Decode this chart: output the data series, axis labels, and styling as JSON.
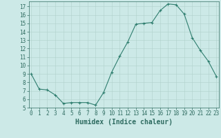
{
  "x": [
    0,
    1,
    2,
    3,
    4,
    5,
    6,
    7,
    8,
    9,
    10,
    11,
    12,
    13,
    14,
    15,
    16,
    17,
    18,
    19,
    20,
    21,
    22,
    23
  ],
  "y": [
    9.0,
    7.2,
    7.1,
    6.5,
    5.5,
    5.6,
    5.6,
    5.6,
    5.3,
    6.8,
    9.2,
    11.1,
    12.8,
    14.9,
    15.0,
    15.1,
    16.5,
    17.3,
    17.2,
    16.1,
    13.3,
    11.8,
    10.5,
    8.7
  ],
  "line_color": "#2e7d6e",
  "marker_color": "#2e7d6e",
  "bg_color": "#cce9e7",
  "grid_color": "#b0d0cc",
  "xlabel": "Humidex (Indice chaleur)",
  "ylim": [
    5,
    17.6
  ],
  "yticks": [
    5,
    6,
    7,
    8,
    9,
    10,
    11,
    12,
    13,
    14,
    15,
    16,
    17
  ],
  "xticks": [
    0,
    1,
    2,
    3,
    4,
    5,
    6,
    7,
    8,
    9,
    10,
    11,
    12,
    13,
    14,
    15,
    16,
    17,
    18,
    19,
    20,
    21,
    22,
    23
  ],
  "xlim": [
    -0.3,
    23.3
  ],
  "font_color": "#2e6b60",
  "tick_fontsize": 5.5,
  "xlabel_fontsize": 7.0
}
